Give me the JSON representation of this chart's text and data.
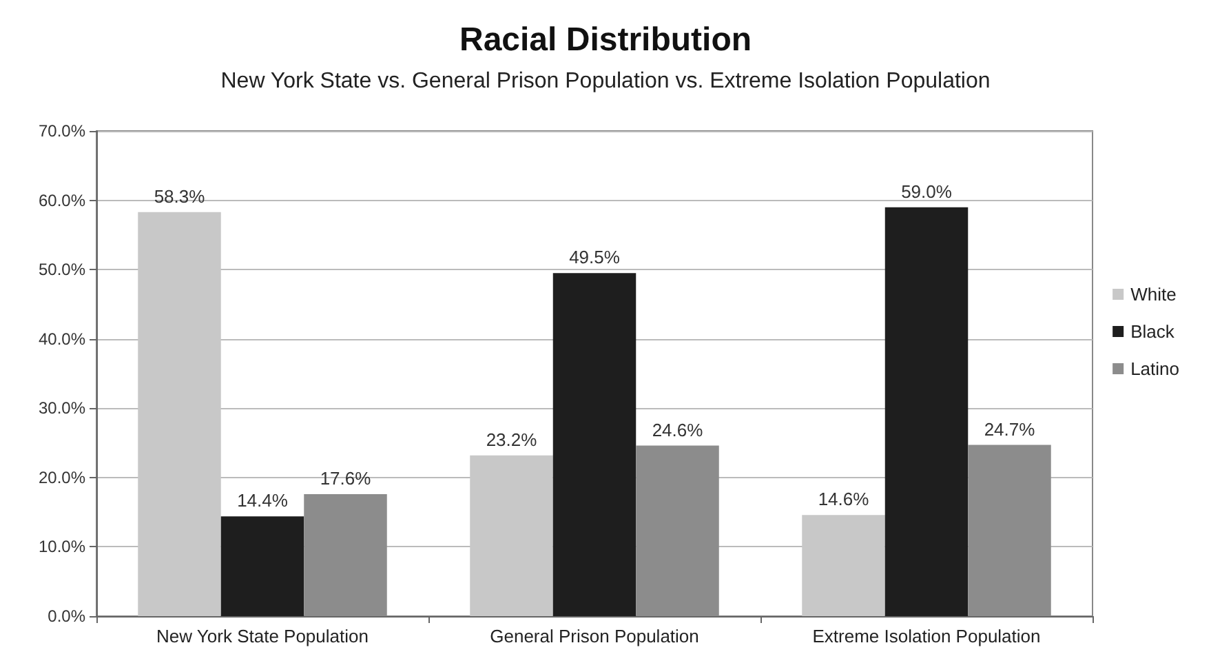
{
  "chart_data": {
    "type": "bar",
    "title": "Racial Distribution",
    "subtitle": "New York State vs. General Prison Population vs. Extreme Isolation Population",
    "categories": [
      "New York State Population",
      "General Prison Population",
      "Extreme Isolation Population"
    ],
    "series": [
      {
        "name": "White",
        "color": "#c8c8c8",
        "values": [
          58.3,
          23.2,
          14.6
        ],
        "value_labels": [
          "58.3%",
          "23.2%",
          "14.6%"
        ]
      },
      {
        "name": "Black",
        "color": "#1e1e1e",
        "values": [
          14.4,
          49.5,
          59.0
        ],
        "value_labels": [
          "14.4%",
          "49.5%",
          "59.0%"
        ]
      },
      {
        "name": "Latino",
        "color": "#8c8c8c",
        "values": [
          17.6,
          24.6,
          24.7
        ],
        "value_labels": [
          "17.6%",
          "24.6%",
          "24.7%"
        ]
      }
    ],
    "ylim": [
      0,
      70
    ],
    "yticks": [
      {
        "value": 0,
        "label": "0.0%"
      },
      {
        "value": 10,
        "label": "10.0%"
      },
      {
        "value": 20,
        "label": "20.0%"
      },
      {
        "value": 30,
        "label": "30.0%"
      },
      {
        "value": 40,
        "label": "40.0%"
      },
      {
        "value": 50,
        "label": "50.0%"
      },
      {
        "value": 60,
        "label": "60.0%"
      },
      {
        "value": 70,
        "label": "70.0%"
      }
    ],
    "grid": "y",
    "legend": "right"
  }
}
